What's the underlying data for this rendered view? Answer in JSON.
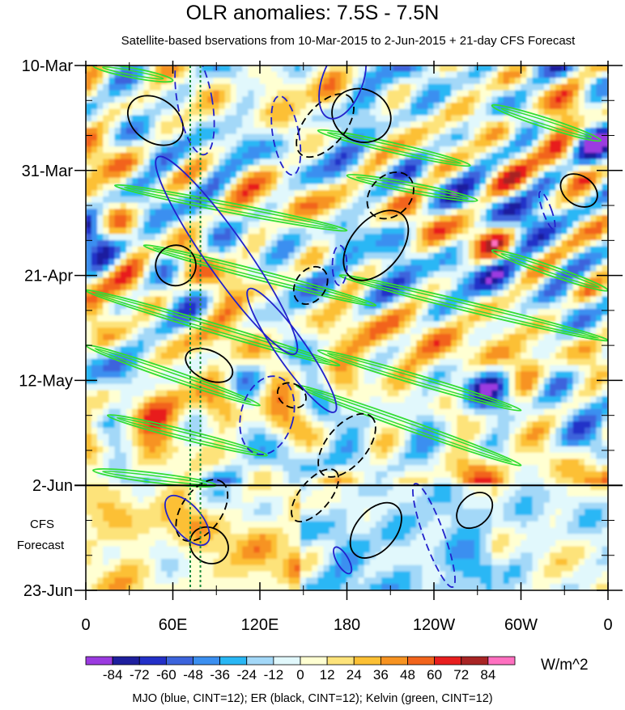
{
  "title": "OLR anomalies: 7.5S - 7.5N",
  "subtitle": "Satellite-based bservations from 10-Mar-2015 to 2-Jun-2015 + 21-day CFS Forecast",
  "footer": "MJO (blue, CINT=12); ER (black, CINT=12); Kelvin (green, CINT=12)",
  "chart_data": {
    "type": "heatmap",
    "title": "OLR anomalies: 7.5S - 7.5N",
    "x_ticks": [
      {
        "lon": 0,
        "label": "0"
      },
      {
        "lon": 60,
        "label": "60E"
      },
      {
        "lon": 120,
        "label": "120E"
      },
      {
        "lon": 180,
        "label": "180"
      },
      {
        "lon": 240,
        "label": "120W"
      },
      {
        "lon": 300,
        "label": "60W"
      },
      {
        "lon": 360,
        "label": "0"
      }
    ],
    "xlim": [
      0,
      360
    ],
    "y_ticks": [
      {
        "day": 0,
        "label": "10-Mar"
      },
      {
        "day": 21,
        "label": "31-Mar"
      },
      {
        "day": 42,
        "label": "21-Apr"
      },
      {
        "day": 63,
        "label": "12-May"
      },
      {
        "day": 84,
        "label": "2-Jun"
      },
      {
        "day": 105,
        "label": "23-Jun"
      }
    ],
    "ylim": [
      0,
      105
    ],
    "forecast_start_day": 84,
    "forecast_label_line1": "CFS",
    "forecast_label_line2": "Forecast",
    "colorbar": {
      "unit": "W/m^2",
      "levels": [
        "-84",
        "-72",
        "-60",
        "-48",
        "-36",
        "-24",
        "-12",
        "0",
        "12",
        "24",
        "36",
        "48",
        "60",
        "72",
        "84"
      ],
      "colors": [
        "#9b3be0",
        "#1e1f9e",
        "#2330c8",
        "#3c64dc",
        "#3b8ff0",
        "#29b7f5",
        "#a3d8f8",
        "#e1f8fc",
        "#ffffd2",
        "#fde37a",
        "#fcc034",
        "#f79321",
        "#f2641c",
        "#e81e1e",
        "#a82424",
        "#ff70c0"
      ]
    },
    "overlays": [
      {
        "name": "MJO",
        "color": "blue",
        "cint": 12
      },
      {
        "name": "ER",
        "color": "black",
        "cint": 12
      },
      {
        "name": "Kelvin",
        "color": "green",
        "cint": 12
      }
    ],
    "reference_lines_lon": [
      72,
      79
    ],
    "mjo_contours": [
      {
        "lon": 75,
        "day": 7,
        "dlon": 12,
        "dday": 11,
        "ang": -10,
        "dash": true
      },
      {
        "lon": 97,
        "day": 38,
        "dlon": 14,
        "dday": 24,
        "ang": -35,
        "dash": false
      },
      {
        "lon": 142,
        "day": 57,
        "dlon": 10,
        "dday": 15,
        "ang": -35,
        "dash": false
      },
      {
        "lon": 138,
        "day": 14,
        "dlon": 9,
        "dday": 8,
        "ang": -10,
        "dash": true
      },
      {
        "lon": 175,
        "day": 40,
        "dlon": 5,
        "dday": 4,
        "ang": 0,
        "dash": true
      },
      {
        "lon": 125,
        "day": 70,
        "dlon": 18,
        "dday": 8,
        "ang": 15,
        "dash": true
      },
      {
        "lon": 177,
        "day": 3,
        "dlon": 14,
        "dday": 8,
        "ang": 20,
        "dash": false
      },
      {
        "lon": 318,
        "day": 29,
        "dlon": 3,
        "dday": 4,
        "ang": -20,
        "dash": true
      },
      {
        "lon": 240,
        "day": 94,
        "dlon": 7,
        "dday": 11,
        "ang": -20,
        "dash": true
      },
      {
        "lon": 70,
        "day": 91,
        "dlon": 10,
        "dday": 6,
        "ang": -40,
        "dash": false
      },
      {
        "lon": 177,
        "day": 99,
        "dlon": 4,
        "dday": 3,
        "ang": -30,
        "dash": false
      }
    ],
    "er_contours": [
      {
        "lon": 48,
        "day": 11,
        "dlon": 15,
        "dday": 6,
        "ang": -55,
        "dash": false
      },
      {
        "lon": 190,
        "day": 10,
        "dlon": 18,
        "dday": 6,
        "ang": -65,
        "dash": false
      },
      {
        "lon": 165,
        "day": 12,
        "dlon": 26,
        "dday": 4,
        "ang": -50,
        "dash": true
      },
      {
        "lon": 210,
        "day": 26,
        "dlon": 18,
        "dday": 4,
        "ang": -45,
        "dash": true
      },
      {
        "lon": 200,
        "day": 36,
        "dlon": 28,
        "dday": 5,
        "ang": -50,
        "dash": false
      },
      {
        "lon": 340,
        "day": 25,
        "dlon": 10,
        "dday": 4,
        "ang": -55,
        "dash": false
      },
      {
        "lon": 62,
        "day": 40,
        "dlon": 14,
        "dday": 4,
        "ang": -60,
        "dash": false
      },
      {
        "lon": 85,
        "day": 60,
        "dlon": 10,
        "dday": 5,
        "ang": -65,
        "dash": false
      },
      {
        "lon": 142,
        "day": 66,
        "dlon": 8,
        "dday": 3,
        "ang": -60,
        "dash": true
      },
      {
        "lon": 155,
        "day": 44,
        "dlon": 14,
        "dday": 3,
        "ang": -55,
        "dash": true
      },
      {
        "lon": 180,
        "day": 76,
        "dlon": 26,
        "dday": 4,
        "ang": -50,
        "dash": true
      },
      {
        "lon": 158,
        "day": 86,
        "dlon": 22,
        "dday": 3,
        "ang": -50,
        "dash": true
      },
      {
        "lon": 200,
        "day": 93,
        "dlon": 22,
        "dday": 4,
        "ang": -50,
        "dash": false
      },
      {
        "lon": 268,
        "day": 89,
        "dlon": 14,
        "dday": 3,
        "ang": -45,
        "dash": false
      },
      {
        "lon": 85,
        "day": 96,
        "dlon": 12,
        "dday": 4,
        "ang": -55,
        "dash": false
      },
      {
        "lon": 80,
        "day": 89,
        "dlon": 24,
        "dday": 4,
        "ang": -55,
        "dash": true
      }
    ],
    "kelvin_bands": [
      {
        "lon0": 5,
        "day0": 0,
        "lon1": 60,
        "day1": 3
      },
      {
        "lon0": 160,
        "day0": 13,
        "lon1": 265,
        "day1": 20
      },
      {
        "lon0": 280,
        "day0": 8,
        "lon1": 355,
        "day1": 15
      },
      {
        "lon0": 20,
        "day0": 24,
        "lon1": 180,
        "day1": 33
      },
      {
        "lon0": 180,
        "day0": 22,
        "lon1": 270,
        "day1": 27
      },
      {
        "lon0": 40,
        "day0": 36,
        "lon1": 200,
        "day1": 48
      },
      {
        "lon0": 175,
        "day0": 42,
        "lon1": 360,
        "day1": 55
      },
      {
        "lon0": 0,
        "day0": 45,
        "lon1": 175,
        "day1": 60
      },
      {
        "lon0": 0,
        "day0": 56,
        "lon1": 120,
        "day1": 68
      },
      {
        "lon0": 160,
        "day0": 57,
        "lon1": 300,
        "day1": 69
      },
      {
        "lon0": 280,
        "day0": 37,
        "lon1": 360,
        "day1": 45
      },
      {
        "lon0": 15,
        "day0": 70,
        "lon1": 125,
        "day1": 78
      },
      {
        "lon0": 145,
        "day0": 64,
        "lon1": 300,
        "day1": 80
      },
      {
        "lon0": 5,
        "day0": 81,
        "lon1": 90,
        "day1": 84
      }
    ]
  }
}
